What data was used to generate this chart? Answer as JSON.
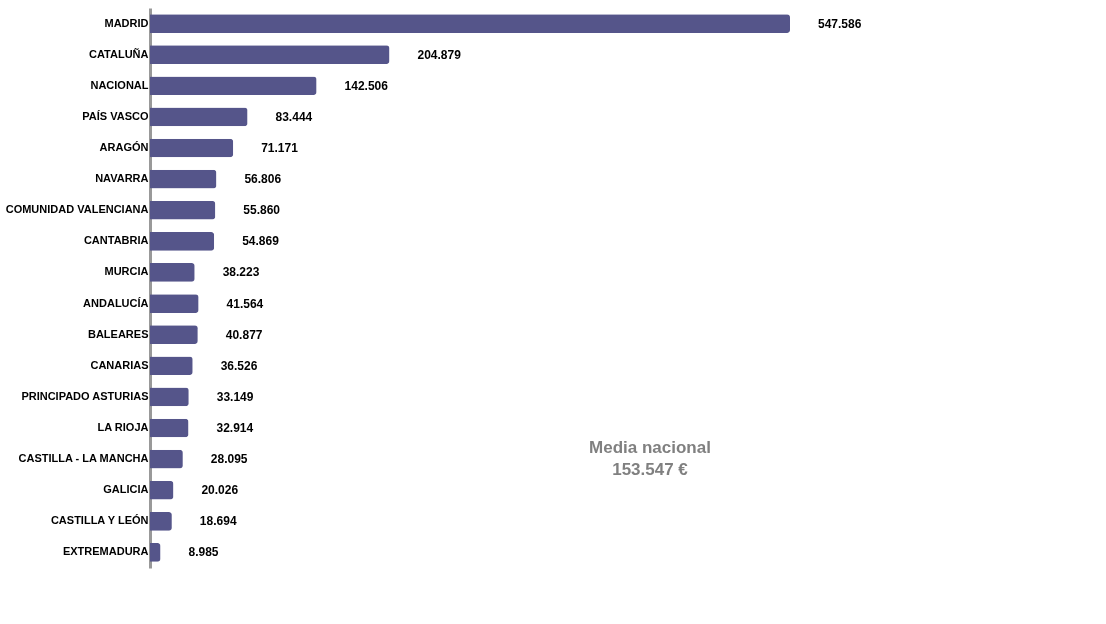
{
  "chart_data": {
    "type": "bar",
    "orientation": "horizontal",
    "categories": [
      "MADRID",
      "CATALUÑA",
      "NACIONAL",
      "PAÍS VASCO",
      "ARAGÓN",
      "NAVARRA",
      "COMUNIDAD VALENCIANA",
      "CANTABRIA",
      "MURCIA",
      "ANDALUCÍA",
      "BALEARES",
      "CANARIAS",
      "PRINCIPADO ASTURIAS",
      "LA RIOJA",
      "CASTILLA - LA MANCHA",
      "GALICIA",
      "CASTILLA Y LEÓN",
      "EXTREMADURA"
    ],
    "values": [
      547586,
      204879,
      142506,
      83444,
      71171,
      56806,
      55860,
      54869,
      38223,
      41564,
      40877,
      36526,
      33149,
      32914,
      28095,
      20026,
      18694,
      8985
    ],
    "value_labels": [
      "547.586",
      "204.879",
      "142.506",
      "83.444",
      "71.171",
      "56.806",
      "55.860",
      "54.869",
      "38.223",
      "41.564",
      "40.877",
      "36.526",
      "33.149",
      "32.914",
      "28.095",
      "20.026",
      "18.694",
      "8.985"
    ],
    "color": "#55558a",
    "annotations": [
      "Media nacional",
      "153.547 €"
    ],
    "grid": false
  }
}
